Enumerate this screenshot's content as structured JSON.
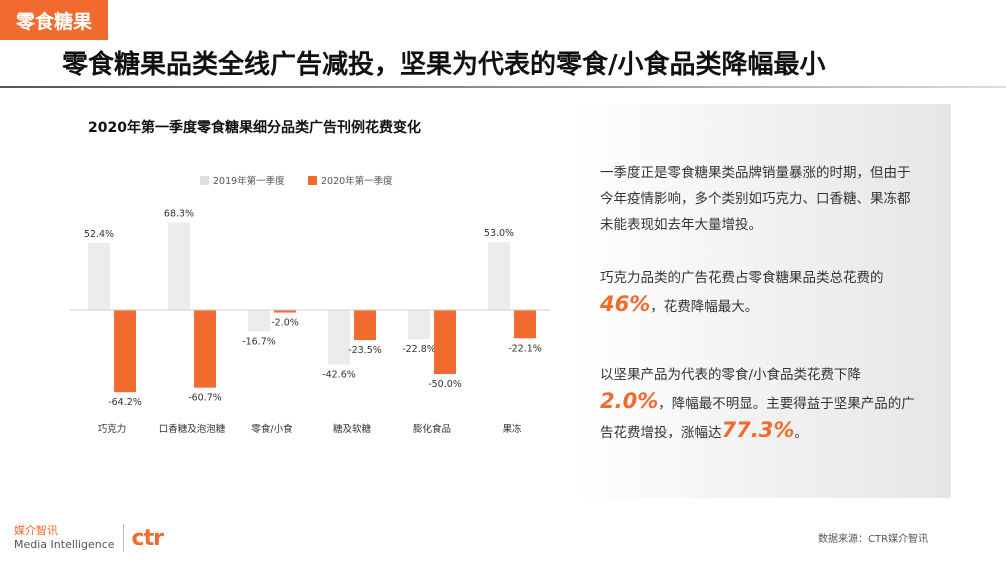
{
  "header": {
    "tag": "零食糖果",
    "headline": "零食糖果品类全线广告减投，坚果为代表的零食/小食品类降幅最小"
  },
  "chart_title": "2020年第一季度零食糖果细分品类广告刊例花费变化",
  "chart_data": {
    "type": "bar",
    "categories": [
      "巧克力",
      "口香糖及泡泡糖",
      "零食/小食",
      "糖及软糖",
      "膨化食品",
      "果冻"
    ],
    "series": [
      {
        "name": "2019年第一季度",
        "values": [
          52.4,
          68.3,
          -16.7,
          -42.6,
          -22.8,
          53.0
        ],
        "labels": [
          "52.4%",
          "68.3%",
          "-16.7%",
          "-42.6%",
          "-22.8%",
          "53.0%"
        ]
      },
      {
        "name": "2020年第一季度",
        "values": [
          -64.2,
          -60.7,
          -2.0,
          -23.5,
          -50.0,
          -22.1
        ],
        "labels": [
          "-64.2%",
          "-60.7%",
          "-2.0%",
          "-23.5%",
          "-50.0%",
          "-22.1%"
        ]
      }
    ],
    "colors": {
      "series0": "#ececec",
      "series1": "#f26b2e"
    },
    "ylim": [
      -70,
      75
    ],
    "legend_position": "top-left",
    "grid": false
  },
  "notes": {
    "p1": "一季度正是零食糖果类品牌销量暴涨的时期，但由于今年疫情影响，多个类别如巧克力、口香糖、果冻都未能表现如去年大量增投。",
    "p2_pre": "巧克力品类的广告花费占零食糖果品类总花费的",
    "p2_hl": "46%",
    "p2_post": "，花费降幅最大。",
    "p3_pre": "以坚果产品为代表的零食/小食品类花费下降",
    "p3_hl1": "2.0%",
    "p3_mid": "，降幅最不明显。主要得益于坚果产品的广告花费增投，涨幅达",
    "p3_hl2": "77.3%",
    "p3_post": "。"
  },
  "logo": {
    "cn": "媒介智讯",
    "en": "Media Intelligence",
    "mark": "ctr"
  },
  "source": "数据来源：CTR媒介智讯"
}
